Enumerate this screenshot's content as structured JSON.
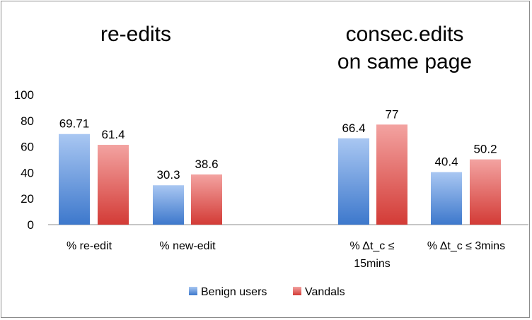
{
  "chart_data": {
    "type": "bar",
    "groups": [
      {
        "title_lines": [
          "re-edits"
        ],
        "categories": [
          [
            "% re-edit"
          ],
          [
            "% new-edit"
          ]
        ],
        "series": [
          {
            "name": "Benign users",
            "values": [
              69.71,
              30.3
            ],
            "labels": [
              "69.71",
              "30.3"
            ]
          },
          {
            "name": "Vandals",
            "values": [
              61.4,
              38.6
            ],
            "labels": [
              "61.4",
              "38.6"
            ]
          }
        ]
      },
      {
        "title_lines": [
          "consec.edits",
          "on same page"
        ],
        "categories": [
          [
            "% Δt_c ≤",
            "15mins"
          ],
          [
            "% Δt_c ≤ 3mins"
          ]
        ],
        "series": [
          {
            "name": "Benign users",
            "values": [
              66.4,
              40.4
            ],
            "labels": [
              "66.4",
              "40.4"
            ]
          },
          {
            "name": "Vandals",
            "values": [
              77,
              50.2
            ],
            "labels": [
              "77",
              "50.2"
            ]
          }
        ]
      }
    ],
    "ylim": [
      0,
      100
    ],
    "yticks": [
      0,
      20,
      40,
      60,
      80,
      100
    ],
    "legend": {
      "position": "bottom",
      "entries": [
        {
          "name": "Benign users",
          "color": "#4f81bd"
        },
        {
          "name": "Vandals",
          "color": "#c0504d"
        }
      ]
    },
    "colors": {
      "benign_top": "#a9c7f2",
      "benign_bottom": "#3d78cc",
      "vandal_top": "#f3a3a1",
      "vandal_bottom": "#d33b36"
    },
    "grid": false
  }
}
